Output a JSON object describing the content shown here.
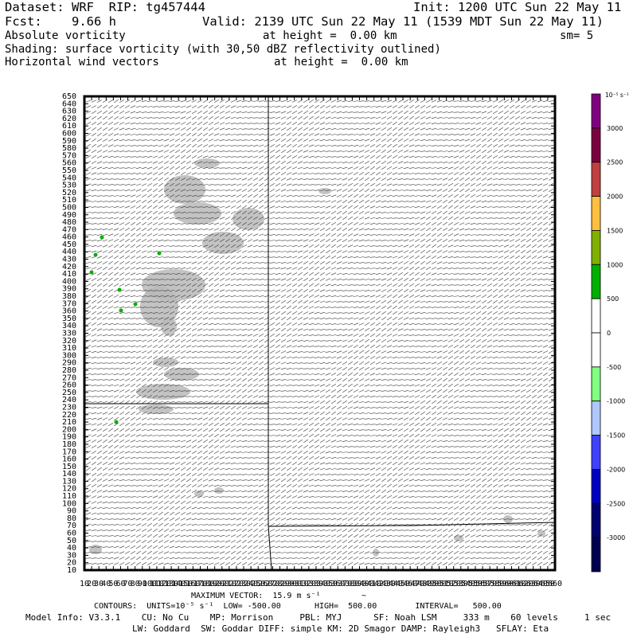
{
  "header": {
    "dataset": "Dataset: WRF  RIP: tg457444",
    "init": "Init: 1200 UTC Sun 22 May 11",
    "fcst": "Fcst:    9.66 h",
    "valid": "Valid: 2139 UTC Sun 22 May 11 (1539 MDT Sun 22 May 11)",
    "line3_left": "Absolute vorticity",
    "line3_mid": "at height =  0.00 km",
    "line3_right": "sm= 5",
    "line4": "Shading: surface vorticity (with 30,50 dBZ reflectivity outlined)",
    "line5_left": "Horizontal wind vectors",
    "line5_mid": "at height =  0.00 km"
  },
  "colorbar": {
    "units_label": "10⁻⁵ s⁻¹",
    "labels": [
      "3000",
      "2500",
      "2000",
      "1500",
      "1000",
      "500",
      "0",
      "-500",
      "-1000",
      "-1500",
      "-2000",
      "-2500",
      "-3000"
    ],
    "colors": [
      "#800080",
      "#7a0040",
      "#c04040",
      "#ffbf40",
      "#80b000",
      "#00b000",
      "#ffffff",
      "#ffffff",
      "#80ff80",
      "#b0c8ff",
      "#4040ff",
      "#0000c0",
      "#00006e",
      "#000050"
    ]
  },
  "chart_data": {
    "type": "heatmap",
    "y_ticks": [
      10,
      20,
      30,
      40,
      50,
      60,
      70,
      80,
      90,
      100,
      110,
      120,
      130,
      140,
      150,
      160,
      170,
      180,
      190,
      200,
      210,
      220,
      230,
      240,
      250,
      260,
      270,
      280,
      290,
      300,
      310,
      320,
      330,
      340,
      350,
      360,
      370,
      380,
      390,
      400,
      410,
      420,
      430,
      440,
      450,
      460,
      470,
      480,
      490,
      500,
      510,
      520,
      530,
      540,
      550,
      560,
      570,
      580,
      590,
      600,
      610,
      620,
      630,
      640,
      650
    ],
    "x_ticks": [
      10,
      20,
      30,
      40,
      50,
      60,
      70,
      80,
      90,
      100,
      110,
      120,
      130,
      140,
      150,
      160,
      170,
      180,
      190,
      200,
      210,
      220,
      230,
      240,
      250,
      260,
      270,
      280,
      290,
      300,
      310,
      320,
      330,
      340,
      350,
      360,
      370,
      380,
      390,
      400,
      410,
      420,
      430,
      440,
      450,
      460,
      470,
      480,
      490,
      500,
      510,
      520,
      530,
      540,
      550,
      560,
      570,
      580,
      590,
      600,
      610,
      620,
      630,
      640,
      650,
      660
    ],
    "x_range": [
      10,
      660
    ],
    "y_range": [
      10,
      650
    ],
    "grid": false
  },
  "footer": {
    "max_vector": "MAXIMUM VECTOR:  15.9 m s⁻¹",
    "contours": "CONTOURS:  UNITS=10⁻⁵ s⁻¹  LOW= -500.00       HIGH=  500.00        INTERVAL=   500.00",
    "model_info": "Model Info: V3.3.1    CU: No Cu    MP: Morrison     PBL: MYJ      SF: Noah LSM     333 m    60 levels     1 sec",
    "model_info2": "LW: Goddard  SW: Goddar DIFF: simple KM: 2D Smagor DAMP: Rayleigh3   SFLAY: Eta"
  }
}
